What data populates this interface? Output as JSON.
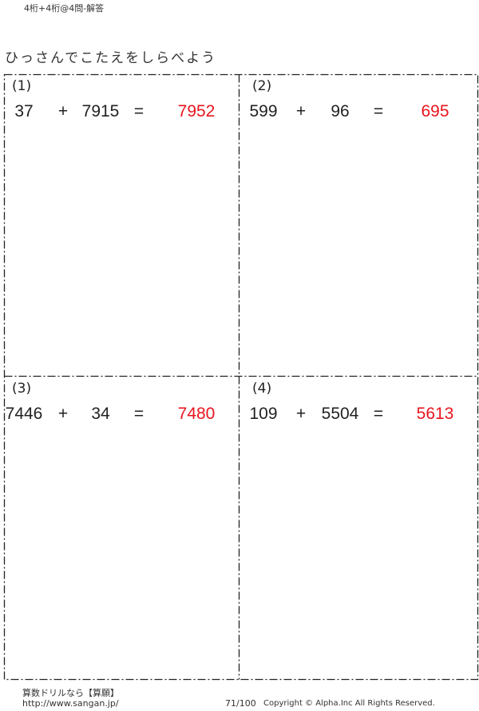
{
  "header": {
    "title": "4桁+4桁@4問-解答"
  },
  "instruction": "ひっさんでこたえをしらべよう",
  "answer_color": "#e8141e",
  "problems": [
    {
      "label": "(1)",
      "a": "37",
      "op": "+",
      "b": "7915",
      "eq": "=",
      "answer": "7952"
    },
    {
      "label": "(2)",
      "a": "599",
      "op": "+",
      "b": "96",
      "eq": "=",
      "answer": "695"
    },
    {
      "label": "(3)",
      "a": "7446",
      "op": "+",
      "b": "34",
      "eq": "=",
      "answer": "7480"
    },
    {
      "label": "(4)",
      "a": "109",
      "op": "+",
      "b": "5504",
      "eq": "=",
      "answer": "5613"
    }
  ],
  "footer": {
    "brand": "算数ドリルなら【算願】",
    "url": "http://www.sangan.jp/",
    "page": "71/100",
    "copyright": "Copyright © Alpha.Inc All Rights Reserved."
  }
}
